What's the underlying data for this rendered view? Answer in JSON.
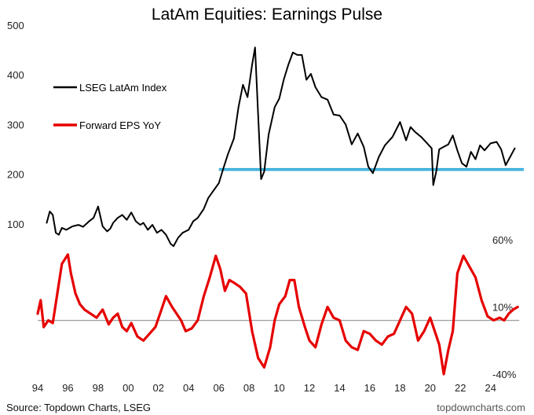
{
  "chart_data": {
    "type": "line",
    "title": "LatAm Equities: Earnings Pulse",
    "source": "Source: Topdown Charts, LSEG",
    "watermark": "topdowncharts.com",
    "x_tick_labels": [
      "94",
      "96",
      "98",
      "00",
      "02",
      "04",
      "06",
      "08",
      "10",
      "12",
      "14",
      "16",
      "18",
      "20",
      "22",
      "24"
    ],
    "xlim": [
      1994.0,
      2026.2
    ],
    "left_axis": {
      "ticks": [
        100,
        200,
        300,
        400,
        500
      ],
      "ylim": [
        0,
        500
      ]
    },
    "right_axis": {
      "ticks": [
        "60%",
        "10%",
        "-40%"
      ],
      "tick_values": [
        60,
        10,
        -40
      ],
      "ylim": [
        -40,
        60
      ]
    },
    "legend": [
      "LSEG LatAm Index",
      "Forward EPS YoY"
    ],
    "colors": {
      "index": "#000000",
      "eps": "#e60000",
      "support": "#29a8d8",
      "zero": "#9e9e9e"
    },
    "support_band": {
      "from_x": 2006.0,
      "to_x": 2026.2,
      "levels": [
        208,
        211
      ]
    },
    "zero_line": 0,
    "series": [
      {
        "name": "LSEG LatAm Index",
        "axis": "left",
        "x": [
          1994.6,
          1994.8,
          1995.0,
          1995.2,
          1995.4,
          1995.6,
          1995.9,
          1996.3,
          1996.7,
          1997.0,
          1997.4,
          1997.7,
          1998.0,
          1998.3,
          1998.6,
          1998.8,
          1999.0,
          1999.3,
          1999.6,
          1999.9,
          2000.2,
          2000.5,
          2000.8,
          2001.0,
          2001.3,
          2001.6,
          2001.9,
          2002.2,
          2002.5,
          2002.8,
          2003.0,
          2003.3,
          2003.6,
          2004.0,
          2004.3,
          2004.6,
          2005.0,
          2005.3,
          2005.6,
          2006.0,
          2006.3,
          2006.6,
          2007.0,
          2007.3,
          2007.6,
          2007.9,
          2008.2,
          2008.4,
          2008.6,
          2008.8,
          2009.0,
          2009.3,
          2009.7,
          2010.0,
          2010.3,
          2010.6,
          2010.9,
          2011.2,
          2011.5,
          2011.8,
          2012.1,
          2012.4,
          2012.8,
          2013.2,
          2013.6,
          2014.0,
          2014.4,
          2014.8,
          2015.2,
          2015.6,
          2015.9,
          2016.2,
          2016.6,
          2017.0,
          2017.5,
          2018.0,
          2018.4,
          2018.7,
          2019.0,
          2019.4,
          2019.8,
          2020.1,
          2020.2,
          2020.4,
          2020.6,
          2020.9,
          2021.2,
          2021.5,
          2021.8,
          2022.1,
          2022.4,
          2022.7,
          2023.0,
          2023.3,
          2023.6,
          2024.0,
          2024.4,
          2024.7,
          2025.0,
          2025.3,
          2025.6
        ],
        "y": [
          102,
          125,
          118,
          82,
          78,
          92,
          88,
          95,
          98,
          94,
          105,
          112,
          135,
          95,
          85,
          90,
          102,
          112,
          118,
          108,
          123,
          105,
          98,
          102,
          88,
          98,
          82,
          88,
          78,
          60,
          55,
          72,
          82,
          88,
          105,
          112,
          130,
          152,
          165,
          182,
          212,
          240,
          272,
          335,
          380,
          355,
          420,
          455,
          320,
          190,
          205,
          280,
          335,
          352,
          390,
          420,
          445,
          440,
          440,
          390,
          402,
          375,
          355,
          350,
          320,
          318,
          300,
          260,
          282,
          255,
          215,
          202,
          235,
          258,
          275,
          305,
          268,
          295,
          285,
          275,
          262,
          252,
          178,
          205,
          250,
          255,
          260,
          278,
          248,
          222,
          215,
          245,
          230,
          258,
          248,
          262,
          265,
          250,
          218,
          235,
          252
        ]
      },
      {
        "name": "Forward EPS YoY",
        "axis": "right",
        "x": [
          1994.0,
          1994.2,
          1994.4,
          1994.7,
          1995.0,
          1995.3,
          1995.6,
          1996.0,
          1996.2,
          1996.5,
          1996.8,
          1997.1,
          1997.5,
          1997.9,
          1998.3,
          1998.7,
          1999.0,
          1999.3,
          1999.6,
          1999.9,
          2000.2,
          2000.6,
          2001.0,
          2001.4,
          2001.8,
          2002.2,
          2002.5,
          2002.9,
          2003.2,
          2003.5,
          2003.8,
          2004.2,
          2004.6,
          2005.0,
          2005.4,
          2005.8,
          2006.1,
          2006.4,
          2006.7,
          2007.0,
          2007.4,
          2007.8,
          2008.2,
          2008.6,
          2009.0,
          2009.4,
          2009.7,
          2010.0,
          2010.4,
          2010.7,
          2011.0,
          2011.3,
          2011.7,
          2012.0,
          2012.4,
          2012.8,
          2013.2,
          2013.6,
          2014.0,
          2014.4,
          2014.8,
          2015.2,
          2015.6,
          2016.0,
          2016.4,
          2016.8,
          2017.2,
          2017.6,
          2018.0,
          2018.4,
          2018.8,
          2019.2,
          2019.6,
          2020.0,
          2020.3,
          2020.6,
          2020.9,
          2021.2,
          2021.5,
          2021.8,
          2022.2,
          2022.6,
          2023.0,
          2023.4,
          2023.8,
          2024.2,
          2024.6,
          2024.9,
          2025.2,
          2025.5,
          2025.8
        ],
        "y": [
          5,
          15,
          -5,
          0,
          -2,
          20,
          42,
          49,
          35,
          20,
          12,
          8,
          5,
          2,
          8,
          -3,
          2,
          5,
          -5,
          -8,
          -2,
          -12,
          -15,
          -10,
          -5,
          8,
          18,
          10,
          5,
          0,
          -8,
          -6,
          0,
          18,
          32,
          48,
          38,
          22,
          30,
          28,
          25,
          20,
          -8,
          -28,
          -35,
          -20,
          0,
          12,
          18,
          30,
          30,
          10,
          -5,
          -15,
          -20,
          -3,
          10,
          2,
          0,
          -15,
          -20,
          -22,
          -8,
          -10,
          -15,
          -18,
          -12,
          -10,
          0,
          10,
          5,
          -15,
          -8,
          2,
          -8,
          -18,
          -40,
          -22,
          -8,
          35,
          48,
          40,
          32,
          15,
          3,
          0,
          2,
          0,
          5,
          8,
          10
        ]
      }
    ]
  }
}
